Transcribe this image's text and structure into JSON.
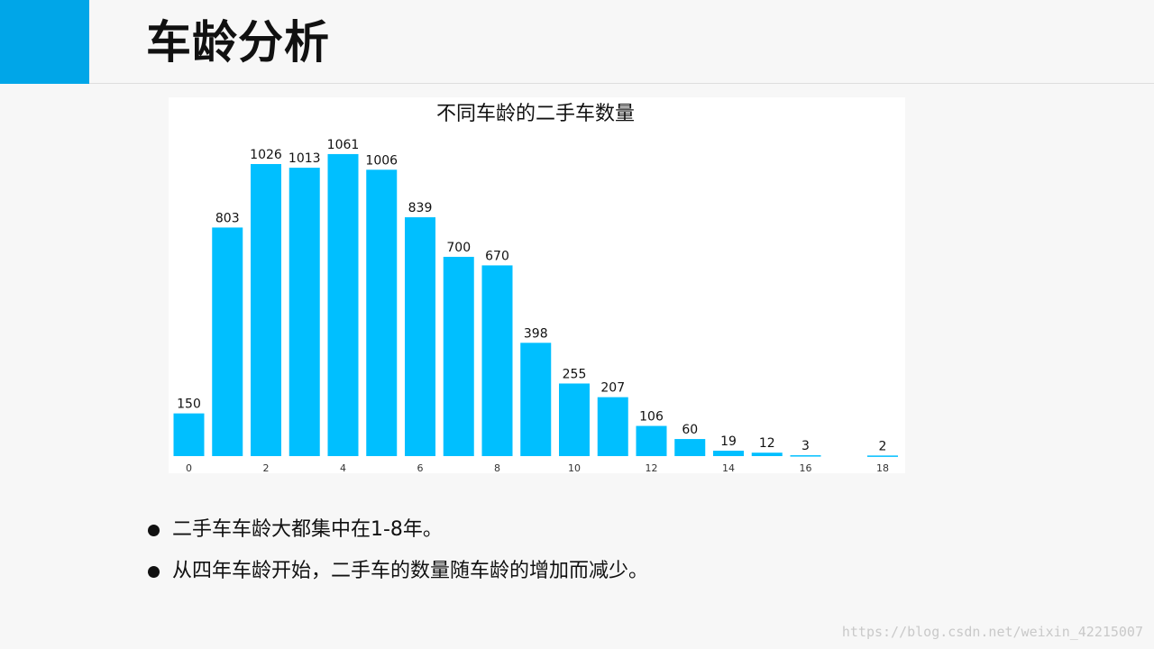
{
  "header": {
    "title": "车龄分析",
    "accent_color": "#00a6e8"
  },
  "chart_data": {
    "type": "bar",
    "title": "不同车龄的二手车数量",
    "xlabel": "",
    "ylabel": "",
    "categories": [
      0,
      1,
      2,
      3,
      4,
      5,
      6,
      7,
      8,
      9,
      10,
      11,
      12,
      13,
      14,
      15,
      16,
      17,
      18
    ],
    "values": [
      150,
      803,
      1026,
      1013,
      1061,
      1006,
      839,
      700,
      670,
      398,
      255,
      207,
      106,
      60,
      19,
      12,
      3,
      0,
      2
    ],
    "value_labels": [
      "150",
      "803",
      "1026",
      "1013",
      "1061",
      "1006",
      "839",
      "700",
      "670",
      "398",
      "255",
      "207",
      "106",
      "60",
      "19",
      "12",
      "3",
      "",
      "2"
    ],
    "x_ticks": [
      "0",
      "2",
      "4",
      "6",
      "8",
      "10",
      "12",
      "14",
      "16",
      "18"
    ],
    "ylim": [
      0,
      1100
    ],
    "grid": false,
    "bar_color": "#00bfff"
  },
  "bullets": [
    "二手车车龄大都集中在1-8年。",
    "从四年车龄开始，二手车的数量随车龄的增加而减少。"
  ],
  "watermark": "https://blog.csdn.net/weixin_42215007"
}
